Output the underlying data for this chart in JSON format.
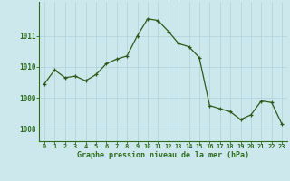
{
  "hours": [
    0,
    1,
    2,
    3,
    4,
    5,
    6,
    7,
    8,
    9,
    10,
    11,
    12,
    13,
    14,
    15,
    16,
    17,
    18,
    19,
    20,
    21,
    22,
    23
  ],
  "pressure": [
    1009.45,
    1009.9,
    1009.65,
    1009.7,
    1009.55,
    1009.75,
    1010.1,
    1010.25,
    1010.35,
    1011.0,
    1011.55,
    1011.5,
    1011.15,
    1010.75,
    1010.65,
    1010.3,
    1008.75,
    1008.65,
    1008.55,
    1008.3,
    1008.45,
    1008.9,
    1008.85,
    1008.15
  ],
  "line_color": "#2d5a1b",
  "marker": "+",
  "marker_size": 3,
  "bg_color": "#cde8ec",
  "grid_color": "#b0d0d8",
  "ylabel_ticks": [
    1008,
    1009,
    1010,
    1011
  ],
  "xlabel": "Graphe pression niveau de la mer (hPa)",
  "ylim": [
    1007.6,
    1012.1
  ],
  "xlim": [
    -0.5,
    23.5
  ],
  "axis_color": "#2d6b1e",
  "tick_color": "#2d6b1e"
}
